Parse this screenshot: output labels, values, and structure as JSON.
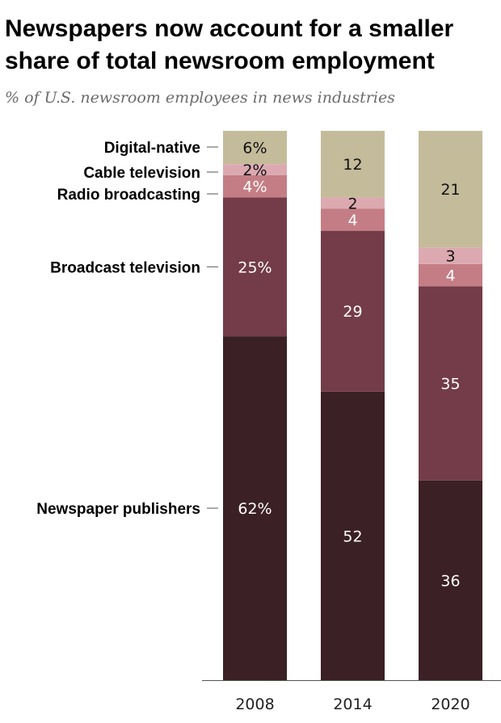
{
  "title": "Newspapers now account for a smaller share of total newsroom employment",
  "subtitle": "% of U.S. newsroom employees in news industries",
  "colors": {
    "Newspaper publishers": "#3b2025",
    "Broadcast television": "#733c48",
    "Radio broadcasting": "#c47d84",
    "Cable television": "#dca9b1",
    "Digital-native": "#c4bb9a"
  },
  "chart_data": {
    "type": "bar",
    "stacked": true,
    "categories": [
      "2008",
      "2014",
      "2020"
    ],
    "series": [
      {
        "name": "Newspaper publishers",
        "values": [
          62,
          52,
          36
        ],
        "labels": [
          "62%",
          "52",
          "36"
        ]
      },
      {
        "name": "Broadcast television",
        "values": [
          25,
          29,
          35
        ],
        "labels": [
          "25%",
          "29",
          "35"
        ]
      },
      {
        "name": "Radio broadcasting",
        "values": [
          4,
          4,
          4
        ],
        "labels": [
          "4%",
          "4",
          "4"
        ]
      },
      {
        "name": "Cable television",
        "values": [
          2,
          2,
          3
        ],
        "labels": [
          "2%",
          "2",
          "3"
        ]
      },
      {
        "name": "Digital-native",
        "values": [
          6,
          12,
          21
        ],
        "labels": [
          "6%",
          "12",
          "21"
        ]
      }
    ],
    "ylim": [
      0,
      100
    ],
    "legend": "left-labels"
  }
}
